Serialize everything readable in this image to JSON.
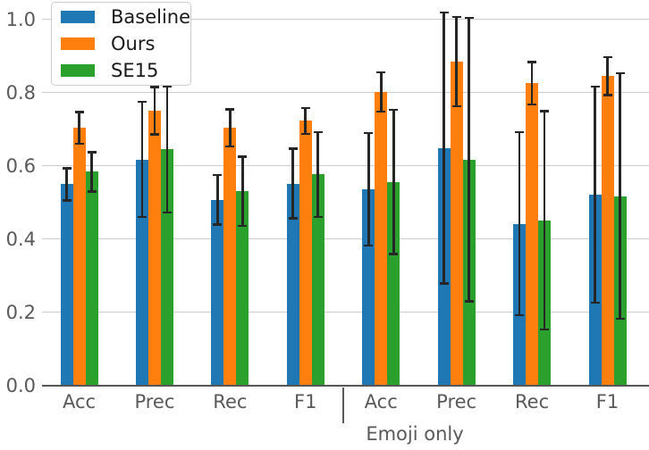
{
  "chart_data": {
    "type": "bar",
    "title": "",
    "xlabel": "",
    "ylabel": "",
    "categories": [
      "Acc",
      "Prec",
      "Rec",
      "F1",
      "Acc",
      "Prec",
      "Rec",
      "F1"
    ],
    "separator_after_index": 3,
    "annotation": "Emoji only",
    "series": [
      {
        "name": "Baseline",
        "color": "#1f77b4",
        "values": [
          0.549,
          0.617,
          0.507,
          0.551,
          0.535,
          0.648,
          0.441,
          0.521
        ],
        "errors": [
          0.044,
          0.157,
          0.068,
          0.095,
          0.154,
          0.37,
          0.25,
          0.295
        ]
      },
      {
        "name": "Ours",
        "color": "#ff7f0e",
        "values": [
          0.703,
          0.75,
          0.703,
          0.722,
          0.801,
          0.884,
          0.825,
          0.845
        ],
        "errors": [
          0.043,
          0.065,
          0.051,
          0.036,
          0.054,
          0.122,
          0.058,
          0.052
        ]
      },
      {
        "name": "SE15",
        "color": "#2ca02c",
        "values": [
          0.583,
          0.644,
          0.53,
          0.576,
          0.556,
          0.616,
          0.451,
          0.517
        ],
        "errors": [
          0.054,
          0.172,
          0.094,
          0.116,
          0.197,
          0.387,
          0.298,
          0.335
        ]
      }
    ],
    "ylim": [
      0.0,
      1.05
    ],
    "yticks": [
      0.0,
      0.2,
      0.4,
      0.6,
      0.8,
      1.0
    ],
    "ytick_labels": [
      "0.0",
      "0.2",
      "0.4",
      "0.6",
      "0.8",
      "1.0"
    ],
    "grid": true,
    "error_bars": true,
    "legend": {
      "position": "upper-left",
      "entries": [
        "Baseline",
        "Ours",
        "SE15"
      ]
    },
    "colors": {
      "background": "#ffffff",
      "grid": "#cccccc",
      "axis_line": "#555555",
      "tick_label": "#595959",
      "error_bar": "#262626",
      "legend_border": "#cccccc",
      "legend_text": "#1a1a1a"
    }
  }
}
